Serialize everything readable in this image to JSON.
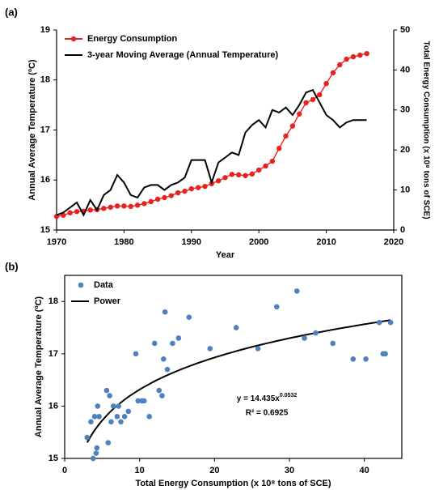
{
  "chart_data": [
    {
      "type": "line",
      "panel_label": "(a)",
      "x": [
        1970,
        1971,
        1972,
        1973,
        1974,
        1975,
        1976,
        1977,
        1978,
        1979,
        1980,
        1981,
        1982,
        1983,
        1984,
        1985,
        1986,
        1987,
        1988,
        1989,
        1990,
        1991,
        1992,
        1993,
        1994,
        1995,
        1996,
        1997,
        1998,
        1999,
        2000,
        2001,
        2002,
        2003,
        2004,
        2005,
        2006,
        2007,
        2008,
        2009,
        2010,
        2011,
        2012,
        2013,
        2014,
        2015,
        2016
      ],
      "xlim": [
        1970,
        2020
      ],
      "xticks": [
        1970,
        1980,
        1990,
        2000,
        2010,
        2020
      ],
      "ylim": [
        15,
        19
      ],
      "yticks": [
        15,
        16,
        17,
        18,
        19
      ],
      "y2lim": [
        0,
        50
      ],
      "y2ticks": [
        0,
        10,
        20,
        30,
        40,
        50
      ],
      "xlabel": "Year",
      "ylabel": "Annual Average Temperature (ºC)",
      "y2label": "Total Energy Consumption (x 10⁸ tons of SCE)",
      "legend": "upper left",
      "series": [
        {
          "name": "Energy Consumption",
          "color": "#e8231f",
          "axis": "y2",
          "marker": true,
          "values": [
            3.4,
            3.7,
            4.3,
            4.6,
            4.7,
            5.0,
            5.1,
            5.4,
            5.7,
            6.0,
            6.0,
            5.9,
            6.2,
            6.6,
            7.1,
            7.7,
            8.1,
            8.6,
            9.3,
            9.7,
            10.3,
            10.6,
            10.9,
            11.6,
            12.3,
            13.1,
            13.9,
            13.8,
            13.6,
            14.0,
            15.0,
            16.0,
            17.2,
            20.4,
            23.5,
            26.0,
            29.0,
            31.8,
            32.6,
            33.8,
            36.6,
            39.3,
            41.3,
            42.7,
            43.3,
            43.7,
            44.1
          ]
        },
        {
          "name": "3-year Moving Average (Annual Temperature)",
          "color": "#000000",
          "marker": false,
          "values": [
            15.3,
            15.35,
            15.45,
            15.55,
            15.3,
            15.6,
            15.4,
            15.7,
            15.8,
            16.1,
            15.95,
            15.7,
            15.65,
            15.85,
            15.9,
            15.9,
            15.8,
            15.9,
            15.95,
            16.05,
            16.4,
            16.4,
            16.4,
            15.95,
            16.35,
            16.45,
            16.55,
            16.5,
            16.95,
            17.1,
            17.2,
            17.05,
            17.4,
            17.35,
            17.45,
            17.3,
            17.5,
            17.75,
            17.8,
            17.55,
            17.3,
            17.2,
            17.05,
            17.15,
            17.2,
            17.2,
            17.2
          ]
        }
      ]
    },
    {
      "type": "scatter",
      "panel_label": "(b)",
      "x": [
        3.0,
        3.5,
        3.8,
        4.0,
        4.2,
        4.3,
        4.4,
        4.6,
        5.6,
        5.8,
        6.0,
        6.2,
        6.5,
        7.0,
        7.2,
        7.5,
        8.0,
        8.5,
        9.5,
        9.8,
        10.3,
        10.6,
        11.3,
        12.0,
        12.6,
        13.0,
        13.2,
        13.4,
        13.7,
        14.4,
        15.2,
        16.6,
        19.4,
        22.9,
        25.8,
        28.3,
        31.0,
        32.0,
        33.5,
        35.8,
        38.5,
        40.2,
        42.0,
        42.5,
        42.8,
        43.5
      ],
      "xlim": [
        0,
        45
      ],
      "xticks": [
        0,
        10,
        20,
        30,
        40
      ],
      "ylim": [
        15,
        18.5
      ],
      "yticks": [
        15,
        16,
        17,
        18
      ],
      "xlabel": "Total Energy Consumption (x 10⁸ tons of SCE)",
      "ylabel": "Annual Average Temperature (ºC)",
      "legend": "upper left",
      "series": [
        {
          "name": "Data",
          "color": "#4f81bd",
          "values": [
            15.4,
            15.7,
            15.0,
            15.8,
            15.1,
            15.2,
            16.0,
            15.8,
            16.3,
            15.3,
            16.2,
            15.7,
            16.0,
            15.8,
            16.0,
            15.7,
            15.8,
            15.9,
            17.0,
            16.1,
            16.1,
            16.1,
            15.8,
            17.2,
            16.3,
            16.2,
            16.9,
            17.8,
            16.7,
            17.2,
            17.3,
            17.7,
            17.1,
            17.5,
            17.1,
            17.9,
            18.2,
            17.3,
            17.4,
            17.2,
            16.9,
            16.9,
            17.6,
            17.0,
            17.0,
            17.6
          ]
        }
      ],
      "trendline": {
        "name": "Power",
        "color": "#000000",
        "coefficient": 14.435,
        "exponent": 0.0532
      },
      "equation": "y = 14.435x",
      "equation_exponent": "0.0532",
      "r_squared_label": "R² = 0.6925"
    }
  ]
}
